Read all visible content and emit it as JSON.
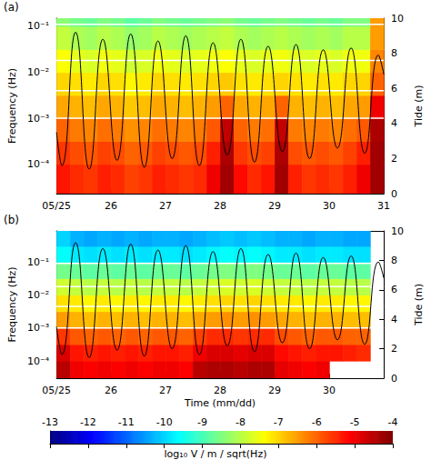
{
  "chart_data": [
    {
      "type": "heatmap",
      "panel": "(a)",
      "ylabel": "Frequency (Hz)",
      "y2label": "Tide (m)",
      "log": "y",
      "grid": false,
      "xlim": [
        25,
        31
      ],
      "xticks": [
        {
          "value": 25,
          "label": "05/25"
        },
        26,
        27,
        28,
        29,
        30,
        31
      ],
      "ylim": [
        2.3e-05,
        0.15
      ],
      "yticks": [
        {
          "value": 0.0001,
          "label": "10⁻⁴"
        },
        {
          "value": 0.001,
          "label": "10⁻³"
        },
        {
          "value": 0.01,
          "label": "10⁻²"
        },
        {
          "value": 0.1,
          "label": "10⁻¹"
        }
      ],
      "y2lim": [
        0,
        10
      ],
      "y2ticks": [
        0,
        2,
        4,
        6,
        8,
        10
      ],
      "x_edges": [
        25,
        25.25,
        25.5,
        25.75,
        26,
        26.25,
        26.5,
        26.75,
        27,
        27.25,
        27.5,
        27.75,
        28,
        28.25,
        28.5,
        28.75,
        29,
        29.25,
        29.5,
        29.75,
        30,
        30.25,
        30.5,
        30.75,
        31
      ],
      "y_edges": [
        2.3e-05,
        0.0001,
        0.000316,
        0.001,
        0.00316,
        0.01,
        0.0316,
        0.1,
        0.15
      ],
      "z": [
        [
          -5.3,
          -5.5,
          -5.6,
          -5.4,
          -5.5,
          -5.7,
          -5.6,
          -5.4,
          -5.5,
          -5.6,
          -5.5,
          -5.0,
          -4.3,
          -5.2,
          -5.5,
          -5.3,
          -4.3,
          -5.4,
          -5.6,
          -5.5,
          -5.6,
          -5.4,
          -5.0,
          -4.3
        ],
        [
          -5.6,
          -5.8,
          -5.9,
          -5.7,
          -5.8,
          -6.0,
          -5.9,
          -5.7,
          -5.8,
          -5.9,
          -5.8,
          -5.4,
          -4.4,
          -5.6,
          -5.8,
          -5.7,
          -4.4,
          -5.8,
          -5.9,
          -5.8,
          -5.9,
          -5.7,
          -5.4,
          -4.3
        ],
        [
          -6.0,
          -6.2,
          -6.3,
          -6.1,
          -6.2,
          -6.4,
          -6.3,
          -6.1,
          -6.2,
          -6.3,
          -6.2,
          -5.9,
          -4.6,
          -6.0,
          -6.2,
          -6.1,
          -4.6,
          -6.2,
          -6.3,
          -6.2,
          -6.3,
          -6.1,
          -5.9,
          -4.4
        ],
        [
          -6.6,
          -6.7,
          -6.8,
          -6.6,
          -6.7,
          -6.9,
          -6.8,
          -6.6,
          -6.7,
          -6.8,
          -6.7,
          -6.5,
          -6.0,
          -6.6,
          -6.7,
          -6.6,
          -6.0,
          -6.7,
          -6.8,
          -6.7,
          -6.8,
          -6.6,
          -6.5,
          -5.0
        ],
        [
          -7.0,
          -7.1,
          -7.2,
          -7.0,
          -7.1,
          -7.3,
          -7.2,
          -7.0,
          -7.1,
          -7.2,
          -7.1,
          -7.0,
          -6.9,
          -7.1,
          -7.2,
          -7.1,
          -7.0,
          -7.1,
          -7.2,
          -7.1,
          -7.2,
          -7.0,
          -7.0,
          -6.0
        ],
        [
          -7.4,
          -7.6,
          -7.7,
          -7.5,
          -7.6,
          -7.8,
          -7.7,
          -7.5,
          -7.6,
          -7.7,
          -7.6,
          -7.5,
          -7.4,
          -7.6,
          -7.7,
          -7.6,
          -7.5,
          -7.6,
          -7.7,
          -7.6,
          -7.7,
          -7.5,
          -7.5,
          -6.3
        ],
        [
          -7.9,
          -8.1,
          -8.2,
          -8.0,
          -8.1,
          -8.3,
          -8.2,
          -8.0,
          -8.1,
          -8.2,
          -8.1,
          -8.0,
          -7.9,
          -8.1,
          -8.2,
          -8.1,
          -8.0,
          -8.1,
          -8.2,
          -8.1,
          -8.2,
          -8.0,
          -8.0,
          -6.5
        ],
        [
          -8.4,
          -8.6,
          -8.7,
          -8.5,
          -8.6,
          -8.8,
          -8.7,
          -8.5,
          -8.6,
          -8.7,
          -8.6,
          -8.5,
          -8.4,
          -8.6,
          -8.7,
          -8.6,
          -8.5,
          -8.6,
          -8.7,
          -8.6,
          -8.7,
          -8.5,
          -8.5,
          -6.5
        ]
      ],
      "lines": {
        "values": [
          0.11,
          0.018,
          0.004,
          0.001
        ],
        "color": "#ffffff"
      },
      "tide": {
        "type": "line",
        "axis": "y2",
        "color": "#000000",
        "x": [
          25.0,
          25.1,
          25.35,
          25.6,
          25.85,
          26.11,
          26.36,
          26.61,
          26.86,
          27.12,
          27.37,
          27.62,
          27.87,
          28.13,
          28.38,
          28.63,
          28.88,
          29.14,
          29.39,
          29.64,
          29.89,
          30.15,
          30.4,
          30.65,
          30.9,
          31.0
        ],
        "values": [
          3.5,
          1.6,
          9.2,
          1.4,
          8.8,
          1.9,
          9.1,
          1.5,
          8.7,
          2.0,
          9.0,
          1.6,
          8.6,
          2.2,
          8.8,
          1.8,
          8.4,
          2.4,
          8.5,
          2.0,
          8.2,
          2.6,
          8.3,
          2.3,
          7.9,
          6.8
        ]
      }
    },
    {
      "type": "heatmap",
      "panel": "(b)",
      "xlabel": "Time (mm/dd)",
      "ylabel": "Frequency (Hz)",
      "y2label": "Tide (m)",
      "log": "y",
      "grid": false,
      "xlim": [
        25,
        31
      ],
      "xticks": [
        {
          "value": 25,
          "label": "05/25"
        },
        26,
        27,
        28,
        29,
        30
      ],
      "ylim": [
        3e-05,
        0.87
      ],
      "yticks": [
        {
          "value": 0.0001,
          "label": "10⁻⁴"
        },
        {
          "value": 0.001,
          "label": "10⁻³"
        },
        {
          "value": 0.01,
          "label": "10⁻²"
        },
        {
          "value": 0.1,
          "label": "10⁻¹"
        }
      ],
      "y2lim": [
        0,
        10
      ],
      "y2ticks": [
        0,
        2,
        4,
        6,
        8,
        10
      ],
      "x_edges": [
        25,
        25.25,
        25.5,
        25.75,
        26,
        26.25,
        26.5,
        26.75,
        27,
        27.25,
        27.5,
        27.75,
        28,
        28.25,
        28.5,
        28.75,
        29,
        29.25,
        29.5,
        29.75,
        30,
        30.25,
        30.5,
        30.75,
        31
      ],
      "y_edges": [
        3e-05,
        0.0001,
        0.000316,
        0.001,
        0.00316,
        0.01,
        0.0316,
        0.1,
        0.3,
        0.87
      ],
      "z": [
        [
          -4.5,
          -5.0,
          -5.1,
          -5.0,
          -5.1,
          -5.0,
          -5.1,
          -5.0,
          -5.0,
          -5.1,
          -4.5,
          -4.4,
          -4.4,
          -4.5,
          -4.4,
          -4.4,
          -4.9,
          -5.0,
          -5.1,
          -5.0,
          null,
          null,
          null,
          null
        ],
        [
          -4.8,
          -5.3,
          -5.4,
          -5.3,
          -5.4,
          -5.3,
          -5.4,
          -5.3,
          -5.3,
          -5.4,
          -5.0,
          -4.8,
          -4.8,
          -4.9,
          -4.8,
          -4.8,
          -5.2,
          -5.3,
          -5.4,
          -5.3,
          -5.3,
          -5.4,
          -5.5,
          null
        ],
        [
          -5.6,
          -5.9,
          -6.0,
          -5.9,
          -6.0,
          -5.9,
          -6.0,
          -5.9,
          -5.9,
          -6.0,
          -5.7,
          -5.5,
          -5.5,
          -5.6,
          -5.5,
          -5.5,
          -5.8,
          -5.9,
          -6.0,
          -5.9,
          -5.9,
          -6.0,
          -6.0,
          null
        ],
        [
          -6.5,
          -6.7,
          -6.8,
          -6.7,
          -6.8,
          -6.7,
          -6.8,
          -6.7,
          -6.7,
          -6.8,
          -6.6,
          -6.5,
          -6.4,
          -6.5,
          -6.4,
          -6.5,
          -6.6,
          -6.7,
          -6.8,
          -6.7,
          -6.7,
          -6.8,
          -6.8,
          null
        ],
        [
          -7.1,
          -7.2,
          -7.3,
          -7.2,
          -7.3,
          -7.2,
          -7.3,
          -7.2,
          -7.2,
          -7.3,
          -7.2,
          -7.1,
          -7.0,
          -7.1,
          -7.0,
          -7.1,
          -7.2,
          -7.2,
          -7.3,
          -7.2,
          -7.2,
          -7.3,
          -7.3,
          null
        ],
        [
          -7.8,
          -7.9,
          -8.0,
          -7.9,
          -8.0,
          -7.9,
          -8.0,
          -7.9,
          -7.9,
          -8.0,
          -7.9,
          -7.8,
          -7.7,
          -7.8,
          -7.7,
          -7.8,
          -7.9,
          -7.9,
          -8.0,
          -7.9,
          -7.9,
          -8.0,
          -8.0,
          null
        ],
        [
          -8.6,
          -8.7,
          -8.8,
          -8.7,
          -8.8,
          -8.7,
          -8.8,
          -8.7,
          -8.7,
          -8.8,
          -8.7,
          -8.6,
          -8.5,
          -8.6,
          -8.5,
          -8.6,
          -8.7,
          -8.7,
          -8.8,
          -8.7,
          -8.7,
          -8.8,
          -8.8,
          null
        ],
        [
          -9.6,
          -9.8,
          -9.9,
          -9.8,
          -9.9,
          -9.8,
          -9.9,
          -9.8,
          -9.8,
          -9.9,
          -9.8,
          -9.7,
          -9.6,
          -9.7,
          -9.6,
          -9.7,
          -9.8,
          -9.8,
          -9.9,
          -9.8,
          -9.8,
          -9.9,
          -9.9,
          null
        ],
        [
          -10.0,
          -10.3,
          -10.4,
          -10.3,
          -10.4,
          -10.3,
          -10.4,
          -10.3,
          -10.3,
          -10.4,
          -10.3,
          -10.2,
          -10.1,
          -10.2,
          -10.1,
          -10.2,
          -10.3,
          -10.3,
          -10.4,
          -10.3,
          -10.3,
          -10.4,
          -10.4,
          null
        ]
      ],
      "lines": {
        "values": [
          0.09,
          0.018,
          0.0045,
          0.001
        ],
        "color": "#ffffff"
      },
      "tide": {
        "type": "line",
        "axis": "y2",
        "color": "#000000",
        "x": [
          25.0,
          25.1,
          25.35,
          25.6,
          25.85,
          26.11,
          26.36,
          26.61,
          26.86,
          27.12,
          27.37,
          27.62,
          27.87,
          28.13,
          28.38,
          28.63,
          28.88,
          29.14,
          29.39,
          29.64,
          29.89,
          30.15,
          30.4,
          30.65,
          30.9,
          31.0
        ],
        "values": [
          3.5,
          1.6,
          9.2,
          1.4,
          8.8,
          1.9,
          9.1,
          1.5,
          8.7,
          2.0,
          9.0,
          1.6,
          8.6,
          2.2,
          8.8,
          1.8,
          8.4,
          2.4,
          8.5,
          2.0,
          8.2,
          2.6,
          8.3,
          2.3,
          7.9,
          6.8
        ]
      }
    }
  ],
  "colorbar": {
    "label": "log₁₀ V / m / sqrt(Hz)",
    "range": [
      -13,
      -4
    ],
    "ticks": [
      -13,
      -12,
      -11,
      -10,
      -9,
      -8,
      -7,
      -6,
      -5,
      -4
    ]
  }
}
